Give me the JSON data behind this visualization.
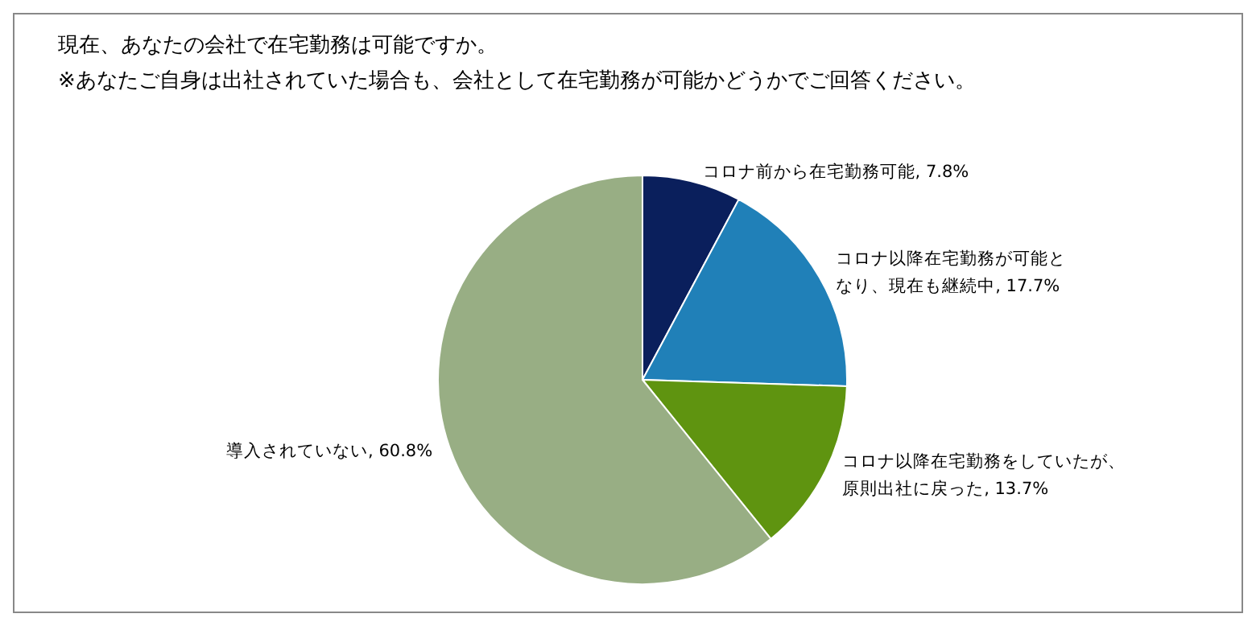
{
  "chart_data": {
    "type": "pie",
    "title": "現在、あなたの会社で在宅勤務は可能ですか。",
    "subtitle": "※あなたご自身は出社されていた場合も、会社として在宅勤務が可能かどうかでご回答ください。",
    "categories": [
      "コロナ前から在宅勤務可能",
      "コロナ以降在宅勤務が可能となり、現在も継続中",
      "コロナ以降在宅勤務をしていたが、原則出社に戻った",
      "導入されていない"
    ],
    "values": [
      7.8,
      17.7,
      13.7,
      60.8
    ],
    "colors": [
      "#0a1f5c",
      "#2080b8",
      "#5f9410",
      "#98ae84"
    ],
    "value_labels": [
      "7.8%",
      "17.7%",
      "13.7%",
      "60.8%"
    ],
    "legend": false
  }
}
